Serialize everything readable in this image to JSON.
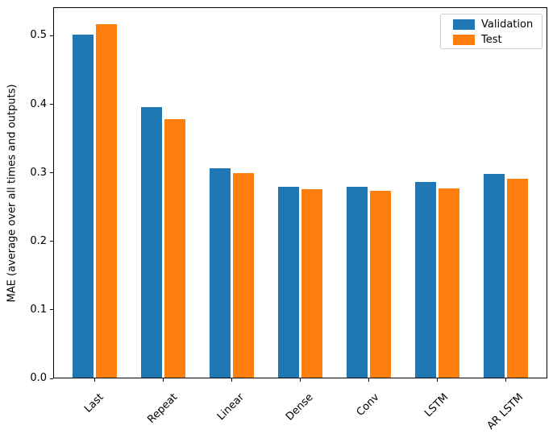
{
  "chart_data": {
    "type": "bar",
    "title": "",
    "categories": [
      "Last",
      "Repeat",
      "Linear",
      "Dense",
      "Conv",
      "LSTM",
      "AR LSTM"
    ],
    "series": [
      {
        "name": "Validation",
        "color": "#1f77b4",
        "values": [
          0.501,
          0.395,
          0.306,
          0.279,
          0.279,
          0.285,
          0.297
        ]
      },
      {
        "name": "Test",
        "color": "#ff7f0e",
        "values": [
          0.516,
          0.377,
          0.298,
          0.275,
          0.273,
          0.276,
          0.29
        ]
      }
    ],
    "xlabel": "",
    "ylabel": "MAE (average over all times and outputs)",
    "ylim": [
      0,
      0.5417
    ],
    "yticks": [
      0.0,
      0.1,
      0.2,
      0.3,
      0.4,
      0.5
    ],
    "ytick_labels": [
      "0.0",
      "0.1",
      "0.2",
      "0.3",
      "0.4",
      "0.5"
    ],
    "xtick_rotation": 45,
    "grid": false,
    "legend_position": "upper right",
    "colors": {
      "spine": "#000000",
      "text": "#000000",
      "legend_border": "#cccccc",
      "background": "#ffffff"
    }
  }
}
